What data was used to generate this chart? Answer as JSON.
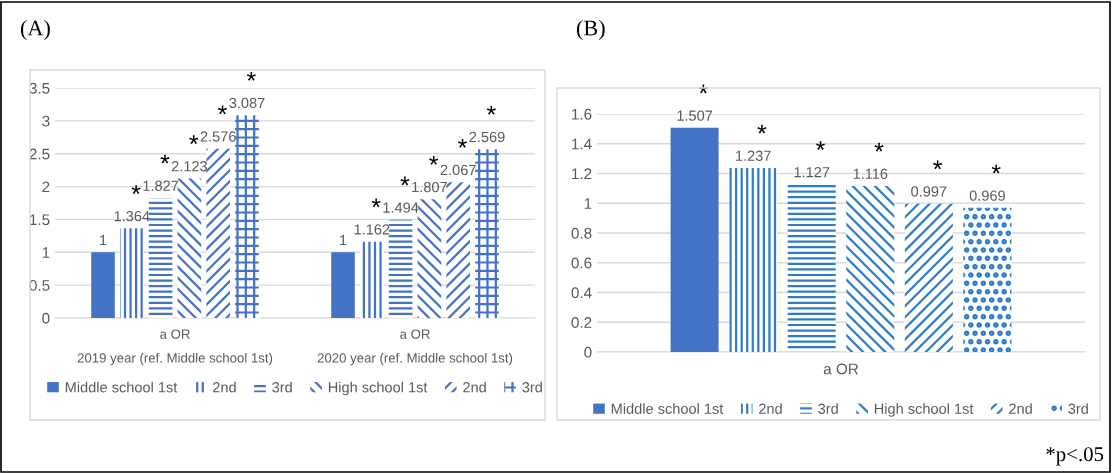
{
  "chart_data": [
    {
      "type": "bar",
      "title": "(A)",
      "categories": [
        "a OR\n2019 year (ref. Middle school 1st)",
        "a OR\n2020 year (ref. Middle school 1st)"
      ],
      "series": [
        {
          "name": "Middle school 1st",
          "color": "#4472c4",
          "values": [
            1,
            1
          ]
        },
        {
          "name": "2nd",
          "color": "#4472c4",
          "values": [
            1.364,
            1.162
          ]
        },
        {
          "name": "3rd",
          "color": "#4472c4",
          "values": [
            1.827,
            1.494
          ]
        },
        {
          "name": "High school 1st",
          "color": "#4472c4",
          "values": [
            2.123,
            1.807
          ]
        },
        {
          "name": "2nd",
          "color": "#4472c4",
          "values": [
            2.576,
            2.067
          ]
        },
        {
          "name": "3rd",
          "color": "#4472c4",
          "values": [
            3.087,
            2.569
          ]
        }
      ],
      "ylim": [
        0,
        3.5
      ],
      "yticks": [
        0,
        0.5,
        1,
        1.5,
        2,
        2.5,
        3,
        3.5
      ],
      "grid": "y",
      "legend": "bottom",
      "data_labels": true,
      "annotations": [
        "*",
        "*",
        "*",
        "*",
        "*",
        "*",
        "*",
        "*",
        "*",
        "*"
      ]
    },
    {
      "type": "bar",
      "title": "(B)",
      "categories": [
        "a OR"
      ],
      "series": [
        {
          "name": "Middle school 1st",
          "color": "#4472c4",
          "values": [
            1.507
          ]
        },
        {
          "name": "2nd",
          "color": "#2e7dc6",
          "values": [
            1.237
          ]
        },
        {
          "name": "3rd",
          "color": "#2e7dc6",
          "values": [
            1.127
          ]
        },
        {
          "name": "High school 1st",
          "color": "#2e7dc6",
          "values": [
            1.116
          ]
        },
        {
          "name": "2nd",
          "color": "#2e7dc6",
          "values": [
            0.997
          ]
        },
        {
          "name": "3rd",
          "color": "#2e7dc6",
          "values": [
            0.969
          ]
        }
      ],
      "ylim": [
        0,
        1.6
      ],
      "yticks": [
        0,
        0.2,
        0.4,
        0.6,
        0.8,
        1,
        1.2,
        1.4,
        1.6
      ],
      "grid": "y",
      "legend": "bottom",
      "data_labels": true,
      "annotations": [
        "*",
        "*",
        "*",
        "*",
        "*",
        "*",
        "*p<.05"
      ]
    }
  ]
}
